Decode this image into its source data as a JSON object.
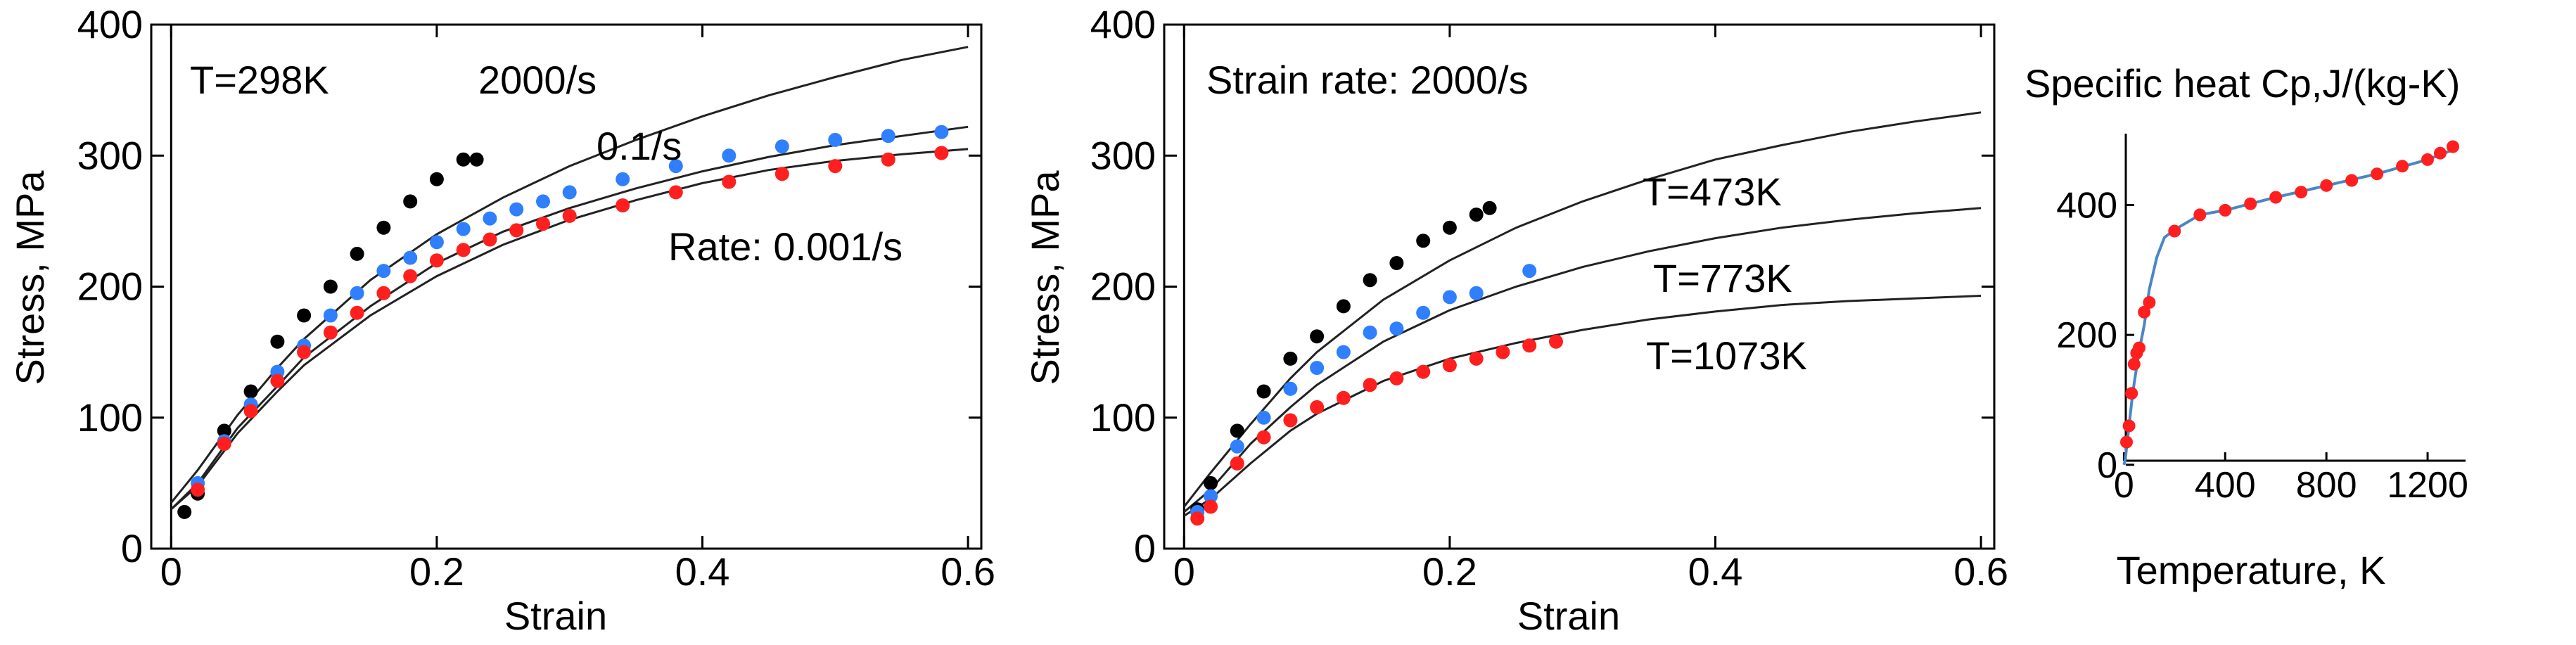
{
  "colors": {
    "black": "#000000",
    "blue": "#2f7fff",
    "red": "#ff1f1f",
    "fit_line": "#4a86c8",
    "curve": "#222222"
  },
  "chart_data": [
    {
      "id": "rate",
      "type": "line",
      "title": "",
      "xlabel": "Strain",
      "ylabel": "Stress, MPa",
      "xlim": [
        -0.015,
        0.61
      ],
      "ylim": [
        0,
        400
      ],
      "xticks": [
        0,
        0.2,
        0.4,
        0.6
      ],
      "xtick_labels": [
        "0",
        "0.2",
        "0.4",
        "0.6"
      ],
      "yticks": [
        0,
        100,
        200,
        300,
        400
      ],
      "ytick_labels": [
        "0",
        "100",
        "200",
        "300",
        "400"
      ],
      "annotations": [
        {
          "key": "temp",
          "text": "T=298K"
        },
        {
          "key": "r2000",
          "text": "2000/s"
        },
        {
          "key": "r01",
          "text": "0.1/s"
        },
        {
          "key": "r0001",
          "text": "Rate: 0.001/s"
        }
      ],
      "curves": [
        {
          "name": "2000/s",
          "x": [
            0,
            0.02,
            0.05,
            0.08,
            0.1,
            0.15,
            0.2,
            0.25,
            0.3,
            0.35,
            0.4,
            0.45,
            0.5,
            0.55,
            0.6
          ],
          "y": [
            35,
            60,
            102,
            138,
            160,
            205,
            240,
            268,
            292,
            312,
            330,
            346,
            360,
            373,
            383
          ]
        },
        {
          "name": "0.1/s",
          "x": [
            0,
            0.02,
            0.05,
            0.08,
            0.1,
            0.15,
            0.2,
            0.25,
            0.3,
            0.35,
            0.4,
            0.45,
            0.5,
            0.55,
            0.6
          ],
          "y": [
            30,
            50,
            92,
            124,
            146,
            185,
            218,
            242,
            260,
            275,
            288,
            299,
            308,
            315,
            322
          ]
        },
        {
          "name": "0.001/s",
          "x": [
            0,
            0.02,
            0.05,
            0.08,
            0.1,
            0.15,
            0.2,
            0.25,
            0.3,
            0.35,
            0.4,
            0.45,
            0.5,
            0.55,
            0.6
          ],
          "y": [
            30,
            48,
            88,
            120,
            140,
            178,
            208,
            232,
            251,
            266,
            279,
            289,
            296,
            301,
            305
          ]
        }
      ],
      "series": [
        {
          "name": "2000/s",
          "color": "#000000",
          "x": [
            0.01,
            0.02,
            0.04,
            0.06,
            0.08,
            0.1,
            0.12,
            0.14,
            0.16,
            0.18,
            0.2,
            0.22,
            0.23
          ],
          "y": [
            28,
            42,
            90,
            120,
            158,
            178,
            200,
            225,
            245,
            265,
            282,
            297,
            297
          ]
        },
        {
          "name": "0.1/s",
          "color": "#2f7fff",
          "x": [
            0.02,
            0.04,
            0.06,
            0.08,
            0.1,
            0.12,
            0.14,
            0.16,
            0.18,
            0.2,
            0.22,
            0.24,
            0.26,
            0.28,
            0.3,
            0.34,
            0.38,
            0.42,
            0.46,
            0.5,
            0.54,
            0.58
          ],
          "y": [
            50,
            82,
            110,
            135,
            155,
            178,
            195,
            212,
            222,
            234,
            244,
            252,
            259,
            265,
            272,
            282,
            292,
            300,
            307,
            312,
            315,
            318
          ]
        },
        {
          "name": "0.001/s",
          "color": "#ff1f1f",
          "x": [
            0.02,
            0.04,
            0.06,
            0.08,
            0.1,
            0.12,
            0.14,
            0.16,
            0.18,
            0.2,
            0.22,
            0.24,
            0.26,
            0.28,
            0.3,
            0.34,
            0.38,
            0.42,
            0.46,
            0.5,
            0.54,
            0.58
          ],
          "y": [
            45,
            80,
            105,
            128,
            150,
            165,
            180,
            195,
            208,
            220,
            228,
            236,
            243,
            248,
            254,
            262,
            272,
            280,
            286,
            292,
            297,
            302
          ]
        }
      ]
    },
    {
      "id": "temp",
      "type": "line",
      "title": "",
      "xlabel": "Strain",
      "ylabel": "Stress, MPa",
      "xlim": [
        -0.015,
        0.61
      ],
      "ylim": [
        0,
        400
      ],
      "xticks": [
        0,
        0.2,
        0.4,
        0.6
      ],
      "xtick_labels": [
        "0",
        "0.2",
        "0.4",
        "0.6"
      ],
      "yticks": [
        0,
        100,
        200,
        300,
        400
      ],
      "ytick_labels": [
        "0",
        "100",
        "200",
        "300",
        "400"
      ],
      "annotations": [
        {
          "key": "rate",
          "text": "Strain rate: 2000/s"
        },
        {
          "key": "t473",
          "text": "T=473K"
        },
        {
          "key": "t773",
          "text": "T=773K"
        },
        {
          "key": "t1073",
          "text": "T=1073K"
        }
      ],
      "curves": [
        {
          "name": "T=473K",
          "x": [
            0,
            0.02,
            0.05,
            0.08,
            0.1,
            0.15,
            0.2,
            0.25,
            0.3,
            0.35,
            0.4,
            0.45,
            0.5,
            0.55,
            0.6
          ],
          "y": [
            32,
            58,
            95,
            130,
            150,
            190,
            220,
            245,
            265,
            282,
            297,
            308,
            318,
            326,
            333
          ]
        },
        {
          "name": "T=773K",
          "x": [
            0,
            0.02,
            0.05,
            0.08,
            0.1,
            0.15,
            0.2,
            0.25,
            0.3,
            0.35,
            0.4,
            0.45,
            0.5,
            0.55,
            0.6
          ],
          "y": [
            28,
            45,
            80,
            108,
            125,
            158,
            182,
            200,
            215,
            227,
            237,
            245,
            251,
            256,
            260
          ]
        },
        {
          "name": "T=1073K",
          "x": [
            0,
            0.02,
            0.05,
            0.08,
            0.1,
            0.15,
            0.2,
            0.25,
            0.3,
            0.35,
            0.4,
            0.45,
            0.5,
            0.55,
            0.6
          ],
          "y": [
            25,
            38,
            65,
            90,
            103,
            128,
            145,
            157,
            167,
            175,
            181,
            186,
            189,
            191,
            193
          ]
        }
      ],
      "series": [
        {
          "name": "T=473K",
          "color": "#000000",
          "x": [
            0.01,
            0.02,
            0.04,
            0.06,
            0.08,
            0.1,
            0.12,
            0.14,
            0.16,
            0.18,
            0.2,
            0.22,
            0.23
          ],
          "y": [
            30,
            50,
            90,
            120,
            145,
            162,
            185,
            205,
            218,
            235,
            245,
            255,
            260
          ]
        },
        {
          "name": "T=773K",
          "color": "#2f7fff",
          "x": [
            0.01,
            0.02,
            0.04,
            0.06,
            0.08,
            0.1,
            0.12,
            0.14,
            0.16,
            0.18,
            0.2,
            0.22,
            0.26
          ],
          "y": [
            28,
            40,
            78,
            100,
            122,
            138,
            150,
            165,
            168,
            180,
            192,
            195,
            212
          ]
        },
        {
          "name": "T=1073K",
          "color": "#ff1f1f",
          "x": [
            0.01,
            0.02,
            0.04,
            0.06,
            0.08,
            0.1,
            0.12,
            0.14,
            0.16,
            0.18,
            0.2,
            0.22,
            0.24,
            0.26,
            0.28
          ],
          "y": [
            23,
            32,
            65,
            85,
            98,
            108,
            115,
            125,
            130,
            135,
            140,
            145,
            150,
            155,
            158
          ]
        }
      ]
    },
    {
      "id": "cp",
      "type": "line",
      "title": "Specific heat Cp,J/(kg-K)",
      "xlabel": "Temperature, K",
      "ylabel": "",
      "xlim": [
        -40,
        1350
      ],
      "ylim": [
        -10,
        510
      ],
      "xticks": [
        0,
        400,
        800,
        1200
      ],
      "xtick_labels": [
        "0",
        "400",
        "800",
        "1200"
      ],
      "yticks": [
        0,
        200,
        400
      ],
      "ytick_labels": [
        "0",
        "200",
        "400"
      ],
      "annotations": [],
      "curves": [
        {
          "name": "fit",
          "x": [
            0,
            5,
            10,
            20,
            30,
            40,
            50,
            60,
            80,
            100,
            130,
            160,
            200,
            300,
            400,
            500,
            600,
            800,
            1000,
            1200,
            1300
          ],
          "y": [
            0,
            8,
            25,
            60,
            95,
            125,
            150,
            175,
            215,
            270,
            320,
            350,
            362,
            385,
            392,
            402,
            412,
            430,
            448,
            470,
            485
          ]
        }
      ],
      "series": [
        {
          "name": "Cp",
          "color": "#ff1f1f",
          "x": [
            10,
            20,
            30,
            40,
            50,
            60,
            80,
            100,
            200,
            300,
            400,
            500,
            600,
            700,
            800,
            900,
            1000,
            1100,
            1200,
            1250,
            1300
          ],
          "y": [
            35,
            60,
            110,
            155,
            172,
            180,
            235,
            250,
            360,
            385,
            392,
            402,
            412,
            420,
            430,
            438,
            448,
            460,
            470,
            480,
            490
          ]
        }
      ]
    }
  ]
}
